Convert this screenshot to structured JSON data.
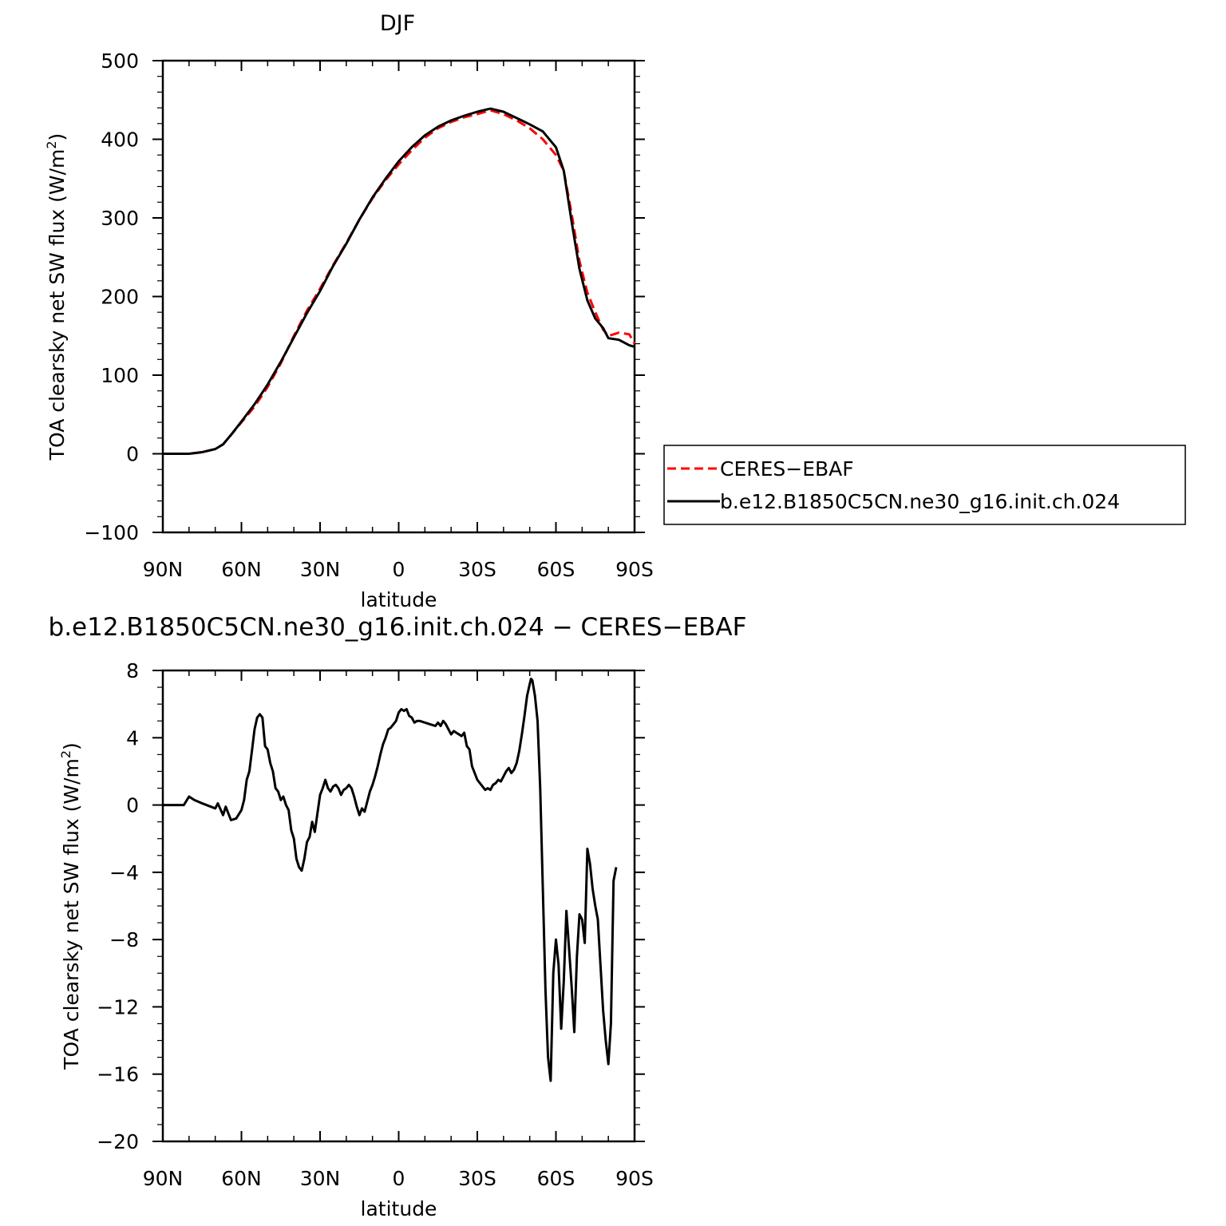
{
  "chart_data": [
    {
      "type": "line",
      "title": "DJF",
      "xlabel": "latitude",
      "ylabel": "TOA clearsky net SW flux (W/m",
      "ylabel_sup": "2",
      "ylabel_close": ")",
      "xlim": [
        90,
        -90
      ],
      "ylim": [
        -100,
        500
      ],
      "xticks": [
        {
          "v": 90,
          "label": "90N"
        },
        {
          "v": 60,
          "label": "60N"
        },
        {
          "v": 30,
          "label": "30N"
        },
        {
          "v": 0,
          "label": "0"
        },
        {
          "v": -30,
          "label": "30S"
        },
        {
          "v": -60,
          "label": "60S"
        },
        {
          "v": -90,
          "label": "90S"
        }
      ],
      "yticks": [
        {
          "v": 500,
          "label": "500"
        },
        {
          "v": 400,
          "label": "400"
        },
        {
          "v": 300,
          "label": "300"
        },
        {
          "v": 200,
          "label": "200"
        },
        {
          "v": 100,
          "label": "100"
        },
        {
          "v": 0,
          "label": "0"
        },
        {
          "v": -100,
          "label": "−100"
        }
      ],
      "legend": "outside-right",
      "series": [
        {
          "name": "CERES−EBAF",
          "color": "#ff0000",
          "dash": true,
          "points": [
            [
              90,
              0
            ],
            [
              85,
              0
            ],
            [
              80,
              0
            ],
            [
              75,
              2
            ],
            [
              70,
              6
            ],
            [
              67,
              12
            ],
            [
              64,
              24
            ],
            [
              60,
              40
            ],
            [
              55,
              60
            ],
            [
              50,
              85
            ],
            [
              45,
              115
            ],
            [
              40,
              150
            ],
            [
              35,
              182
            ],
            [
              30,
              210
            ],
            [
              25,
              240
            ],
            [
              20,
              268
            ],
            [
              15,
              298
            ],
            [
              10,
              325
            ],
            [
              5,
              348
            ],
            [
              0,
              368
            ],
            [
              -5,
              386
            ],
            [
              -10,
              402
            ],
            [
              -15,
              414
            ],
            [
              -20,
              422
            ],
            [
              -25,
              428
            ],
            [
              -30,
              432
            ],
            [
              -35,
              437
            ],
            [
              -40,
              432
            ],
            [
              -45,
              424
            ],
            [
              -50,
              414
            ],
            [
              -55,
              400
            ],
            [
              -60,
              380
            ],
            [
              -63,
              360
            ],
            [
              -66,
              305
            ],
            [
              -69,
              245
            ],
            [
              -72,
              205
            ],
            [
              -75,
              180
            ],
            [
              -78,
              158
            ],
            [
              -80,
              150
            ],
            [
              -84,
              154
            ],
            [
              -88,
              152
            ],
            [
              -90,
              140
            ]
          ]
        },
        {
          "name": "b.e12.B1850C5CN.ne30_g16.init.ch.024",
          "color": "#000000",
          "dash": false,
          "points": [
            [
              90,
              0
            ],
            [
              85,
              0
            ],
            [
              80,
              0
            ],
            [
              75,
              2
            ],
            [
              70,
              6
            ],
            [
              67,
              12
            ],
            [
              64,
              24
            ],
            [
              60,
              41
            ],
            [
              55,
              63
            ],
            [
              50,
              88
            ],
            [
              45,
              117
            ],
            [
              40,
              148
            ],
            [
              35,
              179
            ],
            [
              30,
              207
            ],
            [
              25,
              239
            ],
            [
              20,
              267
            ],
            [
              15,
              298
            ],
            [
              10,
              326
            ],
            [
              5,
              350
            ],
            [
              0,
              372
            ],
            [
              -5,
              390
            ],
            [
              -10,
              405
            ],
            [
              -15,
              416
            ],
            [
              -20,
              424
            ],
            [
              -25,
              430
            ],
            [
              -30,
              435
            ],
            [
              -35,
              439
            ],
            [
              -40,
              435
            ],
            [
              -45,
              427
            ],
            [
              -50,
              419
            ],
            [
              -55,
              410
            ],
            [
              -60,
              390
            ],
            [
              -63,
              360
            ],
            [
              -66,
              295
            ],
            [
              -69,
              235
            ],
            [
              -72,
              195
            ],
            [
              -75,
              172
            ],
            [
              -78,
              160
            ],
            [
              -80,
              147
            ],
            [
              -84,
              145
            ],
            [
              -88,
              138
            ],
            [
              -90,
              136
            ]
          ]
        }
      ]
    },
    {
      "type": "line",
      "title": "b.e12.B1850C5CN.ne30_g16.init.ch.024 − CERES−EBAF",
      "xlabel": "latitude",
      "ylabel": "TOA clearsky net SW flux (W/m",
      "ylabel_sup": "2",
      "ylabel_close": ")",
      "xlim": [
        90,
        -90
      ],
      "ylim": [
        -20,
        8
      ],
      "xticks": [
        {
          "v": 90,
          "label": "90N"
        },
        {
          "v": 60,
          "label": "60N"
        },
        {
          "v": 30,
          "label": "30N"
        },
        {
          "v": 0,
          "label": "0"
        },
        {
          "v": -30,
          "label": "30S"
        },
        {
          "v": -60,
          "label": "60S"
        },
        {
          "v": -90,
          "label": "90S"
        }
      ],
      "yticks": [
        {
          "v": 8,
          "label": "8"
        },
        {
          "v": 4,
          "label": "4"
        },
        {
          "v": 0,
          "label": "0"
        },
        {
          "v": -4,
          "label": "−4"
        },
        {
          "v": -8,
          "label": "−8"
        },
        {
          "v": -12,
          "label": "−12"
        },
        {
          "v": -16,
          "label": "−16"
        },
        {
          "v": -20,
          "label": "−20"
        }
      ],
      "series": [
        {
          "name": "",
          "color": "#000000",
          "dash": false,
          "points": [
            [
              90,
              0
            ],
            [
              85,
              0
            ],
            [
              82,
              0
            ],
            [
              80,
              0.5
            ],
            [
              78,
              0.3
            ],
            [
              75,
              0.1
            ],
            [
              70,
              -0.2
            ],
            [
              69,
              0.1
            ],
            [
              67,
              -0.6
            ],
            [
              66,
              -0.1
            ],
            [
              64,
              -0.9
            ],
            [
              62,
              -0.8
            ],
            [
              60,
              -0.3
            ],
            [
              59,
              0.3
            ],
            [
              58,
              1.5
            ],
            [
              57,
              2
            ],
            [
              56,
              3.2
            ],
            [
              55,
              4.5
            ],
            [
              54,
              5.2
            ],
            [
              53,
              5.4
            ],
            [
              52,
              5.2
            ],
            [
              51,
              3.5
            ],
            [
              50,
              3.3
            ],
            [
              49,
              2.5
            ],
            [
              48,
              2
            ],
            [
              47,
              1
            ],
            [
              46,
              0.8
            ],
            [
              45,
              0.3
            ],
            [
              44,
              0.5
            ],
            [
              43,
              0
            ],
            [
              42,
              -0.3
            ],
            [
              41,
              -1.5
            ],
            [
              40,
              -2
            ],
            [
              39,
              -3.2
            ],
            [
              38,
              -3.7
            ],
            [
              37,
              -3.9
            ],
            [
              36,
              -3.2
            ],
            [
              35,
              -2.2
            ],
            [
              34,
              -1.9
            ],
            [
              33,
              -1
            ],
            [
              32,
              -1.6
            ],
            [
              31,
              -0.5
            ],
            [
              30,
              0.6
            ],
            [
              29,
              1
            ],
            [
              28,
              1.5
            ],
            [
              27,
              1
            ],
            [
              26,
              0.8
            ],
            [
              25,
              1.1
            ],
            [
              24,
              1.2
            ],
            [
              23,
              1
            ],
            [
              22,
              0.6
            ],
            [
              21,
              0.9
            ],
            [
              20,
              1
            ],
            [
              19,
              1.2
            ],
            [
              18,
              1
            ],
            [
              17,
              0.5
            ],
            [
              16,
              -0.1
            ],
            [
              15,
              -0.6
            ],
            [
              14,
              -0.2
            ],
            [
              13,
              -0.4
            ],
            [
              12,
              0.2
            ],
            [
              11,
              0.8
            ],
            [
              10,
              1.2
            ],
            [
              9,
              1.7
            ],
            [
              8,
              2.3
            ],
            [
              7,
              3
            ],
            [
              6,
              3.6
            ],
            [
              5,
              4
            ],
            [
              4,
              4.5
            ],
            [
              3,
              4.6
            ],
            [
              2,
              4.8
            ],
            [
              1,
              5
            ],
            [
              0,
              5.5
            ],
            [
              -1,
              5.7
            ],
            [
              -2,
              5.6
            ],
            [
              -3,
              5.7
            ],
            [
              -4,
              5.3
            ],
            [
              -5,
              5.2
            ],
            [
              -6,
              4.9
            ],
            [
              -7,
              5
            ],
            [
              -8,
              5
            ],
            [
              -10,
              4.9
            ],
            [
              -12,
              4.8
            ],
            [
              -14,
              4.7
            ],
            [
              -15,
              4.9
            ],
            [
              -16,
              4.7
            ],
            [
              -17,
              5
            ],
            [
              -18,
              4.8
            ],
            [
              -19,
              4.5
            ],
            [
              -20,
              4.2
            ],
            [
              -21,
              4.4
            ],
            [
              -22,
              4.3
            ],
            [
              -24,
              4.1
            ],
            [
              -25,
              4.3
            ],
            [
              -26,
              3.5
            ],
            [
              -27,
              3.3
            ],
            [
              -28,
              2.3
            ],
            [
              -29,
              1.9
            ],
            [
              -30,
              1.5
            ],
            [
              -31,
              1.3
            ],
            [
              -32,
              1.1
            ],
            [
              -33,
              0.9
            ],
            [
              -34,
              1
            ],
            [
              -35,
              0.9
            ],
            [
              -36,
              1.2
            ],
            [
              -37,
              1.3
            ],
            [
              -38,
              1.5
            ],
            [
              -39,
              1.4
            ],
            [
              -40,
              1.7
            ],
            [
              -41,
              2
            ],
            [
              -42,
              2.2
            ],
            [
              -43,
              1.9
            ],
            [
              -44,
              2.1
            ],
            [
              -45,
              2.5
            ],
            [
              -46,
              3.2
            ],
            [
              -47,
              4.2
            ],
            [
              -48,
              5.3
            ],
            [
              -49,
              6.5
            ],
            [
              -50,
              7.2
            ],
            [
              -50.5,
              7.5
            ],
            [
              -51,
              7.4
            ],
            [
              -52,
              6.5
            ],
            [
              -53,
              5
            ],
            [
              -54,
              1
            ],
            [
              -55,
              -5
            ],
            [
              -56,
              -11
            ],
            [
              -57,
              -15
            ],
            [
              -58,
              -16.4
            ],
            [
              -59,
              -10
            ],
            [
              -60,
              -8
            ],
            [
              -61,
              -9.5
            ],
            [
              -62,
              -13.3
            ],
            [
              -63,
              -10.5
            ],
            [
              -64,
              -6.3
            ],
            [
              -65,
              -8.5
            ],
            [
              -66,
              -10.8
            ],
            [
              -67,
              -13.5
            ],
            [
              -68,
              -9
            ],
            [
              -69,
              -6.5
            ],
            [
              -70,
              -6.8
            ],
            [
              -71,
              -8.2
            ],
            [
              -72,
              -2.6
            ],
            [
              -73,
              -3.5
            ],
            [
              -74,
              -5
            ],
            [
              -75,
              -6
            ],
            [
              -76,
              -6.8
            ],
            [
              -77,
              -9.5
            ],
            [
              -78,
              -12.2
            ],
            [
              -79,
              -14
            ],
            [
              -80,
              -15.4
            ],
            [
              -81,
              -13
            ],
            [
              -82,
              -4.5
            ],
            [
              -83,
              -3.7
            ]
          ]
        }
      ]
    }
  ]
}
